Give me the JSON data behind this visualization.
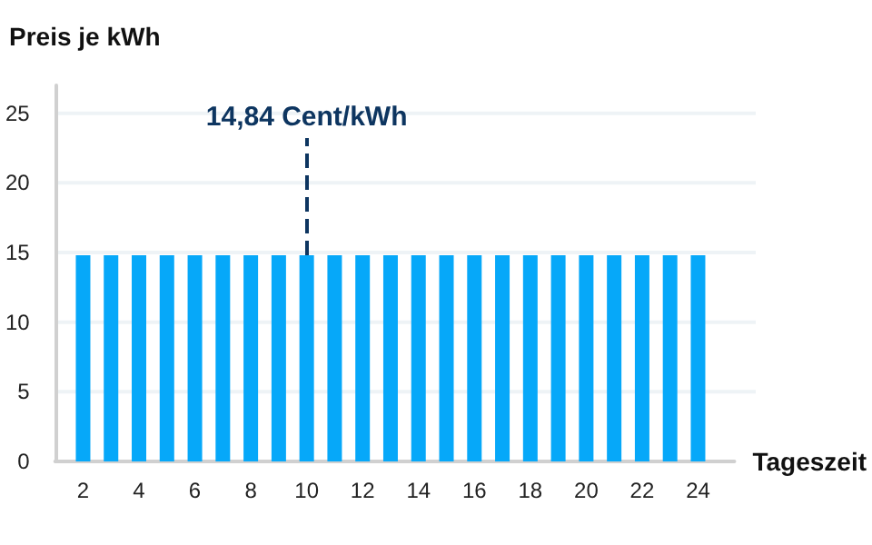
{
  "chart_data": {
    "type": "bar",
    "ylabel": "Preis je kWh",
    "xlabel": "Tageszeit",
    "x": [
      2,
      3,
      4,
      5,
      6,
      7,
      8,
      9,
      10,
      11,
      12,
      13,
      14,
      15,
      16,
      17,
      18,
      19,
      20,
      21,
      22,
      23,
      24
    ],
    "values": [
      14.8,
      14.8,
      14.8,
      14.8,
      14.8,
      14.8,
      14.8,
      14.8,
      14.8,
      14.8,
      14.8,
      14.8,
      14.8,
      14.8,
      14.8,
      14.8,
      14.8,
      14.8,
      14.8,
      14.8,
      14.8,
      14.8,
      14.8
    ],
    "color": "#06a8f9",
    "xlim": [
      1,
      25.3
    ],
    "xticks": [
      2,
      4,
      6,
      8,
      10,
      12,
      14,
      16,
      18,
      20,
      22,
      24
    ],
    "ylim": [
      0,
      27
    ],
    "yticks": [
      0,
      5,
      10,
      15,
      20,
      25
    ],
    "grid": "y",
    "annotations": [
      {
        "text": "14,84 Cent/kWh",
        "x": 10,
        "y": 14.8
      }
    ]
  }
}
